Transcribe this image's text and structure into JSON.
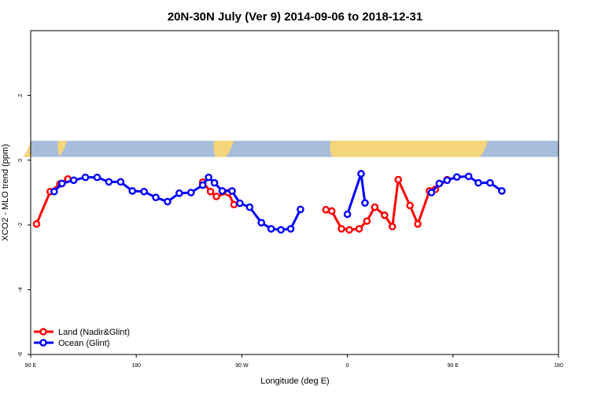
{
  "chart_data": {
    "type": "line",
    "title": "20N-30N July (Ver 9)   2014-09-06 to 2018-12-31",
    "xlabel": "Longitude (deg E)",
    "ylabel": "XCO2 - MLO trend (ppm)",
    "xlim": [
      -90,
      180
    ],
    "ylim": [
      -6,
      4
    ],
    "x_ticks": [
      {
        "value": -90,
        "label": "90 E"
      },
      {
        "value": -36,
        "label": "180"
      },
      {
        "value": 18,
        "label": "90 W"
      },
      {
        "value": 72,
        "label": "0"
      },
      {
        "value": 126,
        "label": "90 E"
      },
      {
        "value": 180,
        "label": "180"
      }
    ],
    "y_ticks": [
      {
        "value": -6,
        "label": "-6"
      },
      {
        "value": -4,
        "label": "-4"
      },
      {
        "value": -2,
        "label": "-2"
      },
      {
        "value": 0,
        "label": "0"
      },
      {
        "value": 2,
        "label": "2"
      }
    ],
    "map_strip": {
      "ymin": 0.1,
      "ymax": 0.6,
      "ocean_color": "#a6bddb",
      "land_color": "#f5d57a"
    },
    "legend": {
      "position": "bottom-left"
    },
    "series": [
      {
        "name": "Land (Nadir&Glint)",
        "color": "#ff0000",
        "segments": [
          [
            [
              -87,
              -1.97
            ],
            [
              -80,
              -0.97
            ],
            [
              -75,
              -0.73
            ],
            [
              -71,
              -0.58
            ]
          ],
          [
            [
              -2,
              -0.68
            ],
            [
              2,
              -0.97
            ],
            [
              5,
              -1.12
            ],
            [
              11,
              -1.0
            ],
            [
              14,
              -1.37
            ]
          ],
          [
            [
              61,
              -1.53
            ],
            [
              64,
              -1.57
            ],
            [
              69,
              -2.12
            ],
            [
              73,
              -2.15
            ],
            [
              78,
              -2.12
            ],
            [
              82,
              -1.88
            ],
            [
              86,
              -1.45
            ],
            [
              91,
              -1.7
            ],
            [
              95,
              -2.05
            ],
            [
              98,
              -0.6
            ],
            [
              104,
              -1.4
            ],
            [
              108,
              -1.97
            ],
            [
              114,
              -0.95
            ],
            [
              117,
              -0.9
            ],
            [
              123,
              -0.6
            ]
          ]
        ]
      },
      {
        "name": "Ocean (Glint)",
        "color": "#0000ff",
        "segments": [
          [
            [
              -78,
              -0.97
            ],
            [
              -74,
              -0.72
            ],
            [
              -68,
              -0.62
            ],
            [
              -62,
              -0.53
            ],
            [
              -56,
              -0.53
            ],
            [
              -50,
              -0.67
            ],
            [
              -44,
              -0.67
            ],
            [
              -38,
              -0.95
            ],
            [
              -32,
              -0.97
            ],
            [
              -26,
              -1.15
            ],
            [
              -20,
              -1.28
            ],
            [
              -14,
              -1.02
            ],
            [
              -8,
              -1.0
            ],
            [
              -2,
              -0.77
            ],
            [
              1,
              -0.53
            ],
            [
              4,
              -0.7
            ],
            [
              8,
              -0.95
            ],
            [
              13,
              -0.95
            ],
            [
              17,
              -1.33
            ],
            [
              22,
              -1.45
            ],
            [
              28,
              -1.93
            ],
            [
              33,
              -2.12
            ],
            [
              38,
              -2.15
            ],
            [
              43,
              -2.12
            ],
            [
              48,
              -1.52
            ]
          ],
          [
            [
              72,
              -1.67
            ],
            [
              79,
              -0.42
            ],
            [
              81,
              -1.32
            ]
          ],
          [
            [
              115,
              -1.0
            ],
            [
              119,
              -0.72
            ],
            [
              123,
              -0.62
            ],
            [
              128,
              -0.52
            ],
            [
              134,
              -0.5
            ],
            [
              139,
              -0.7
            ],
            [
              145,
              -0.7
            ],
            [
              151,
              -0.95
            ]
          ]
        ]
      }
    ]
  }
}
